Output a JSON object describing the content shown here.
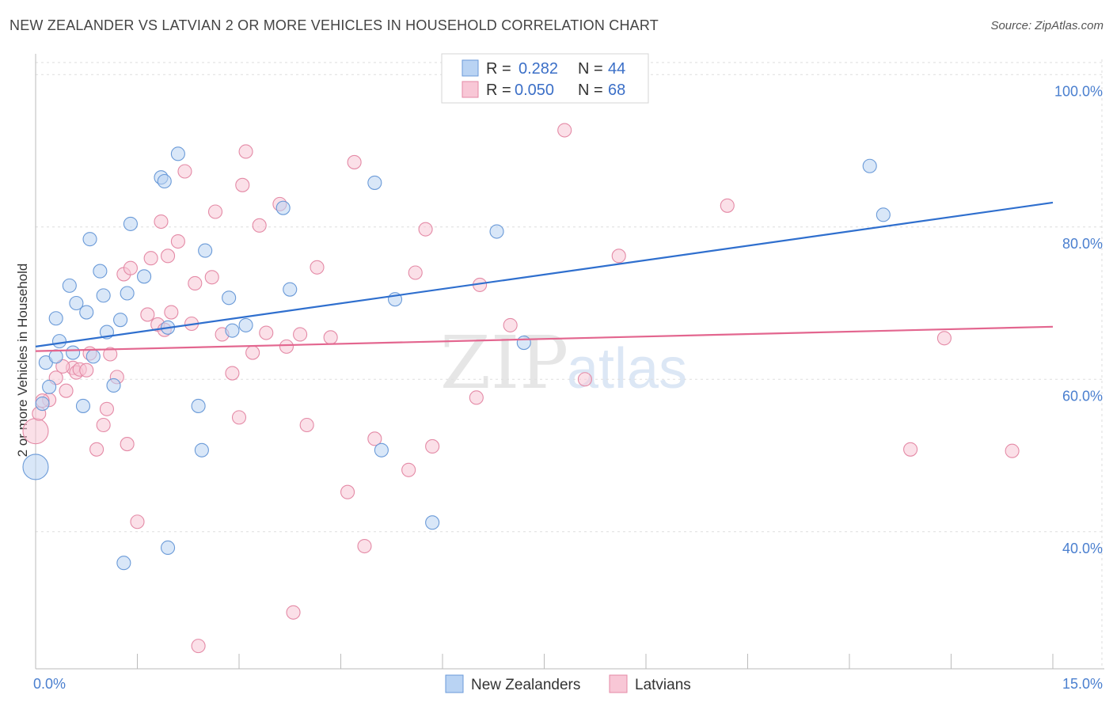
{
  "title": "NEW ZEALANDER VS LATVIAN 2 OR MORE VEHICLES IN HOUSEHOLD CORRELATION CHART",
  "source": "Source: ZipAtlas.com",
  "watermark": {
    "zip": "ZIP",
    "atlas": "atlas"
  },
  "colors": {
    "blue_fill": "#b9d3f3",
    "blue_stroke": "#6a9ad8",
    "blue_line": "#2f6fce",
    "pink_fill": "#f8c7d6",
    "pink_stroke": "#e48aa6",
    "pink_line": "#e3668f",
    "grid": "#dddddd",
    "axis_text": "#4a7fcf"
  },
  "legend": {
    "r_label": "R =",
    "n_label": "N =",
    "series": [
      {
        "r": "0.282",
        "n": "44"
      },
      {
        "r": "0.050",
        "n": "68"
      }
    ]
  },
  "chart_data": {
    "type": "scatter",
    "title": "NEW ZEALANDER VS LATVIAN 2 OR MORE VEHICLES IN HOUSEHOLD CORRELATION CHART",
    "xlabel": "",
    "ylabel": "2 or more Vehicles in Household",
    "xlim": [
      0,
      15
    ],
    "ylim": [
      22,
      102
    ],
    "x_tick_labels": [
      "0.0%",
      "15.0%"
    ],
    "y_ticks": [
      {
        "value": 40,
        "label": "40.0%"
      },
      {
        "value": 60,
        "label": "60.0%"
      },
      {
        "value": 80,
        "label": "80.0%"
      },
      {
        "value": 100,
        "label": "100.0%"
      }
    ],
    "series": [
      {
        "name": "New Zealanders",
        "color": "#b9d3f3",
        "trend": {
          "x0": 0,
          "y0": 64.3,
          "x1": 15,
          "y1": 83.2
        },
        "points": [
          {
            "x": 0.0,
            "y": 48.5,
            "big": true
          },
          {
            "x": 0.1,
            "y": 56.8
          },
          {
            "x": 0.15,
            "y": 62.2
          },
          {
            "x": 0.2,
            "y": 59.0
          },
          {
            "x": 0.3,
            "y": 68.0
          },
          {
            "x": 0.35,
            "y": 65.0
          },
          {
            "x": 0.5,
            "y": 72.3
          },
          {
            "x": 0.6,
            "y": 70.0
          },
          {
            "x": 0.7,
            "y": 56.5
          },
          {
            "x": 0.75,
            "y": 68.8
          },
          {
            "x": 0.8,
            "y": 78.4
          },
          {
            "x": 0.85,
            "y": 63.0
          },
          {
            "x": 0.95,
            "y": 74.2
          },
          {
            "x": 1.0,
            "y": 71.0
          },
          {
            "x": 1.05,
            "y": 66.2
          },
          {
            "x": 1.15,
            "y": 59.2
          },
          {
            "x": 1.25,
            "y": 67.8
          },
          {
            "x": 1.35,
            "y": 71.3
          },
          {
            "x": 1.4,
            "y": 80.4
          },
          {
            "x": 1.6,
            "y": 73.5
          },
          {
            "x": 1.85,
            "y": 86.5
          },
          {
            "x": 1.9,
            "y": 86.0
          },
          {
            "x": 1.95,
            "y": 66.8
          },
          {
            "x": 2.1,
            "y": 89.6
          },
          {
            "x": 2.4,
            "y": 56.5
          },
          {
            "x": 2.5,
            "y": 76.9
          },
          {
            "x": 2.85,
            "y": 70.7
          },
          {
            "x": 2.9,
            "y": 66.4
          },
          {
            "x": 3.1,
            "y": 67.1
          },
          {
            "x": 3.65,
            "y": 82.5
          },
          {
            "x": 3.75,
            "y": 71.8
          },
          {
            "x": 5.0,
            "y": 85.8
          },
          {
            "x": 5.3,
            "y": 70.5
          },
          {
            "x": 6.8,
            "y": 79.4
          },
          {
            "x": 12.3,
            "y": 88.0
          },
          {
            "x": 12.5,
            "y": 81.6
          },
          {
            "x": 7.2,
            "y": 64.8
          },
          {
            "x": 0.55,
            "y": 63.5
          },
          {
            "x": 1.3,
            "y": 35.9
          },
          {
            "x": 1.95,
            "y": 37.9
          },
          {
            "x": 2.45,
            "y": 50.7
          },
          {
            "x": 5.1,
            "y": 50.7
          },
          {
            "x": 5.85,
            "y": 41.2
          },
          {
            "x": 0.3,
            "y": 63.0
          }
        ]
      },
      {
        "name": "Latvians",
        "color": "#f8c7d6",
        "trend": {
          "x0": 0,
          "y0": 63.7,
          "x1": 15,
          "y1": 66.9
        },
        "points": [
          {
            "x": 0.0,
            "y": 53.2,
            "big": true
          },
          {
            "x": 0.05,
            "y": 55.5
          },
          {
            "x": 0.2,
            "y": 57.3
          },
          {
            "x": 0.3,
            "y": 60.2
          },
          {
            "x": 0.45,
            "y": 58.5
          },
          {
            "x": 0.55,
            "y": 61.5
          },
          {
            "x": 0.6,
            "y": 60.9
          },
          {
            "x": 0.65,
            "y": 61.3
          },
          {
            "x": 0.75,
            "y": 61.2
          },
          {
            "x": 0.8,
            "y": 63.4
          },
          {
            "x": 0.9,
            "y": 50.8
          },
          {
            "x": 1.0,
            "y": 54.0
          },
          {
            "x": 1.05,
            "y": 56.1
          },
          {
            "x": 1.1,
            "y": 63.3
          },
          {
            "x": 1.2,
            "y": 60.3
          },
          {
            "x": 1.3,
            "y": 73.8
          },
          {
            "x": 1.35,
            "y": 51.5
          },
          {
            "x": 1.4,
            "y": 74.6
          },
          {
            "x": 1.5,
            "y": 41.3
          },
          {
            "x": 1.65,
            "y": 68.5
          },
          {
            "x": 1.7,
            "y": 75.9
          },
          {
            "x": 1.8,
            "y": 67.2
          },
          {
            "x": 1.85,
            "y": 80.7
          },
          {
            "x": 1.9,
            "y": 66.5
          },
          {
            "x": 1.95,
            "y": 76.2
          },
          {
            "x": 2.0,
            "y": 68.8
          },
          {
            "x": 2.1,
            "y": 78.1
          },
          {
            "x": 2.2,
            "y": 87.3
          },
          {
            "x": 2.3,
            "y": 67.3
          },
          {
            "x": 2.35,
            "y": 72.6
          },
          {
            "x": 2.4,
            "y": 25.0
          },
          {
            "x": 2.6,
            "y": 73.4
          },
          {
            "x": 2.65,
            "y": 82.0
          },
          {
            "x": 2.75,
            "y": 65.9
          },
          {
            "x": 2.9,
            "y": 60.8
          },
          {
            "x": 3.0,
            "y": 55.0
          },
          {
            "x": 3.05,
            "y": 85.5
          },
          {
            "x": 3.1,
            "y": 89.9
          },
          {
            "x": 3.2,
            "y": 63.5
          },
          {
            "x": 3.3,
            "y": 80.2
          },
          {
            "x": 3.4,
            "y": 66.1
          },
          {
            "x": 3.6,
            "y": 83.0
          },
          {
            "x": 3.7,
            "y": 64.3
          },
          {
            "x": 3.8,
            "y": 29.4
          },
          {
            "x": 3.9,
            "y": 65.9
          },
          {
            "x": 4.0,
            "y": 54.0
          },
          {
            "x": 4.15,
            "y": 74.7
          },
          {
            "x": 4.35,
            "y": 65.5
          },
          {
            "x": 4.6,
            "y": 45.2
          },
          {
            "x": 4.7,
            "y": 88.5
          },
          {
            "x": 4.85,
            "y": 38.1
          },
          {
            "x": 5.0,
            "y": 52.2
          },
          {
            "x": 5.5,
            "y": 48.1
          },
          {
            "x": 5.6,
            "y": 74.0
          },
          {
            "x": 5.75,
            "y": 79.7
          },
          {
            "x": 5.85,
            "y": 51.2
          },
          {
            "x": 6.5,
            "y": 57.6
          },
          {
            "x": 6.55,
            "y": 72.4
          },
          {
            "x": 7.0,
            "y": 67.1
          },
          {
            "x": 7.8,
            "y": 92.7
          },
          {
            "x": 8.1,
            "y": 60.0
          },
          {
            "x": 8.6,
            "y": 76.2
          },
          {
            "x": 10.2,
            "y": 82.8
          },
          {
            "x": 12.9,
            "y": 50.8
          },
          {
            "x": 13.4,
            "y": 65.4
          },
          {
            "x": 14.4,
            "y": 50.6
          },
          {
            "x": 0.1,
            "y": 57.2
          },
          {
            "x": 0.4,
            "y": 61.7
          }
        ]
      }
    ]
  }
}
